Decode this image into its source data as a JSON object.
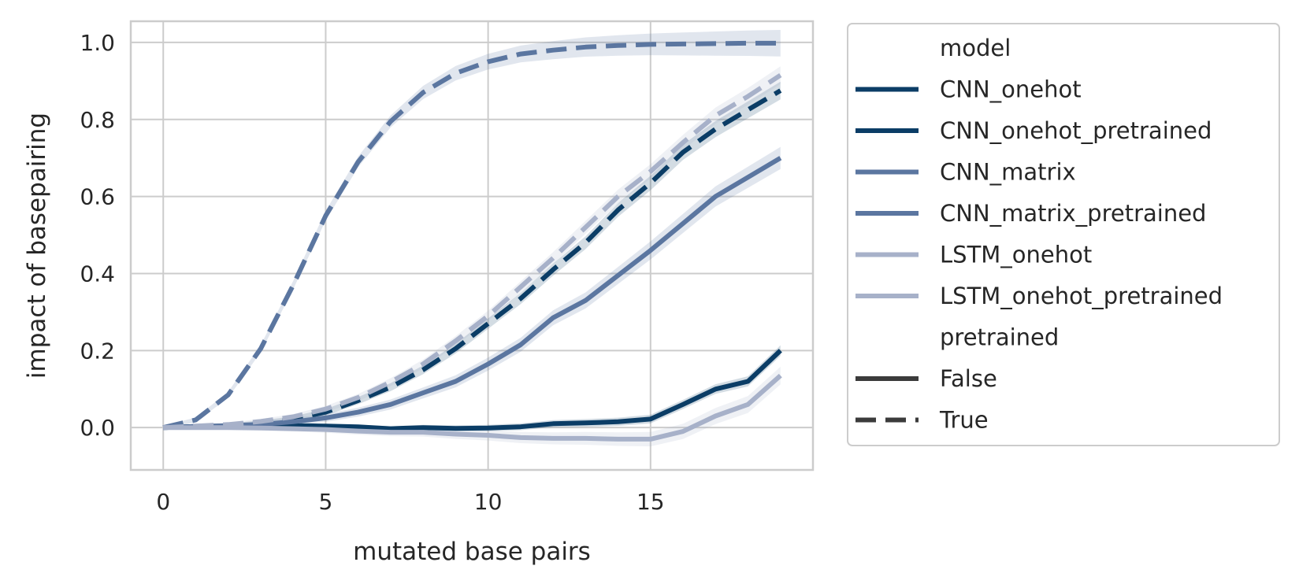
{
  "chart_data": {
    "type": "line",
    "title": "",
    "xlabel": "mutated base pairs",
    "ylabel": "impact of basepairing",
    "xlim": [
      -1.0,
      20.0
    ],
    "ylim": [
      -0.11,
      1.055
    ],
    "xticks": [
      0,
      5,
      10,
      15
    ],
    "xtick_labels": [
      "0",
      "5",
      "10",
      "15"
    ],
    "yticks": [
      0.0,
      0.2,
      0.4,
      0.6,
      0.8,
      1.0
    ],
    "ytick_labels": [
      "0.0",
      "0.2",
      "0.4",
      "0.6",
      "0.8",
      "1.0"
    ],
    "grid": true,
    "legend": {
      "placement": "outside-right",
      "hue_title": "model",
      "style_title": "pretrained",
      "style_entries": [
        {
          "label": "False",
          "dash": "solid"
        },
        {
          "label": "True",
          "dash": "dashed"
        }
      ]
    },
    "x": [
      0,
      1,
      2,
      3,
      4,
      5,
      6,
      7,
      8,
      9,
      10,
      11,
      12,
      13,
      14,
      15,
      16,
      17,
      18,
      19
    ],
    "series": [
      {
        "name": "CNN_onehot",
        "color": "#0b3d66",
        "dash": "solid",
        "values": [
          0.0,
          0.003,
          0.004,
          0.005,
          0.005,
          0.004,
          0.002,
          -0.003,
          0.0,
          -0.002,
          -0.001,
          0.002,
          0.01,
          0.012,
          0.015,
          0.022,
          0.06,
          0.1,
          0.12,
          0.2
        ],
        "ci": 0.012
      },
      {
        "name": "CNN_onehot_pretrained",
        "color": "#0b3d66",
        "dash": "dashed",
        "values": [
          0.0,
          0.003,
          0.006,
          0.012,
          0.022,
          0.04,
          0.07,
          0.105,
          0.15,
          0.205,
          0.27,
          0.335,
          0.41,
          0.48,
          0.565,
          0.635,
          0.715,
          0.775,
          0.825,
          0.875
        ],
        "ci": 0.02
      },
      {
        "name": "CNN_matrix",
        "color": "#5b76a0",
        "dash": "solid",
        "values": [
          0.0,
          0.003,
          0.005,
          0.008,
          0.015,
          0.025,
          0.04,
          0.06,
          0.09,
          0.12,
          0.165,
          0.215,
          0.285,
          0.33,
          0.395,
          0.46,
          0.53,
          0.6,
          0.65,
          0.7
        ],
        "ci": 0.025
      },
      {
        "name": "CNN_matrix_pretrained",
        "color": "#5b76a0",
        "dash": "dashed",
        "values": [
          0.0,
          0.02,
          0.085,
          0.205,
          0.37,
          0.55,
          0.69,
          0.795,
          0.87,
          0.92,
          0.95,
          0.97,
          0.98,
          0.988,
          0.992,
          0.995,
          0.996,
          0.997,
          0.998,
          0.998
        ],
        "ci": 0.03
      },
      {
        "name": "LSTM_onehot",
        "color": "#a7b1c9",
        "dash": "solid",
        "values": [
          0.0,
          0.0,
          0.0,
          -0.001,
          -0.003,
          -0.005,
          -0.009,
          -0.012,
          -0.012,
          -0.017,
          -0.02,
          -0.026,
          -0.028,
          -0.028,
          -0.03,
          -0.03,
          -0.01,
          0.03,
          0.06,
          0.135
        ],
        "ci": 0.02
      },
      {
        "name": "LSTM_onehot_pretrained",
        "color": "#a7b1c9",
        "dash": "dashed",
        "values": [
          0.0,
          0.004,
          0.008,
          0.016,
          0.028,
          0.048,
          0.078,
          0.118,
          0.165,
          0.225,
          0.29,
          0.365,
          0.44,
          0.52,
          0.6,
          0.665,
          0.74,
          0.81,
          0.86,
          0.915
        ],
        "ci": 0.02
      }
    ]
  }
}
